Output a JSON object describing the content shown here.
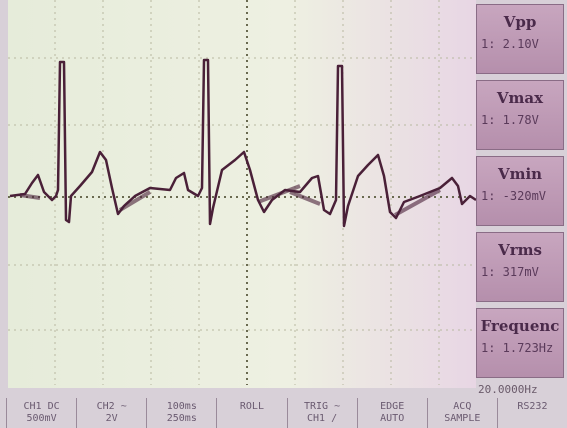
{
  "measurements": [
    {
      "label": "Vpp",
      "value": "1: 2.10V"
    },
    {
      "label": "Vmax",
      "value": "1: 1.78V"
    },
    {
      "label": "Vmin",
      "value": "1: -320mV"
    },
    {
      "label": "Vrms",
      "value": "1: 317mV"
    },
    {
      "label": "Frequenc",
      "value": "1: 1.723Hz"
    }
  ],
  "trigger_frequency": "20.0000Hz",
  "menu": [
    {
      "top": "CH1 DC",
      "bottom": "500mV"
    },
    {
      "top": "CH2 ~",
      "bottom": "2V"
    },
    {
      "top": "100ms",
      "bottom": "250ms"
    },
    {
      "top": "ROLL",
      "bottom": ""
    },
    {
      "top": "TRIG ~",
      "bottom": "CH1 /"
    },
    {
      "top": "EDGE",
      "bottom": "AUTO"
    },
    {
      "top": "ACQ",
      "bottom": "SAMPLE"
    },
    {
      "top": "RS232",
      "bottom": ""
    }
  ]
}
